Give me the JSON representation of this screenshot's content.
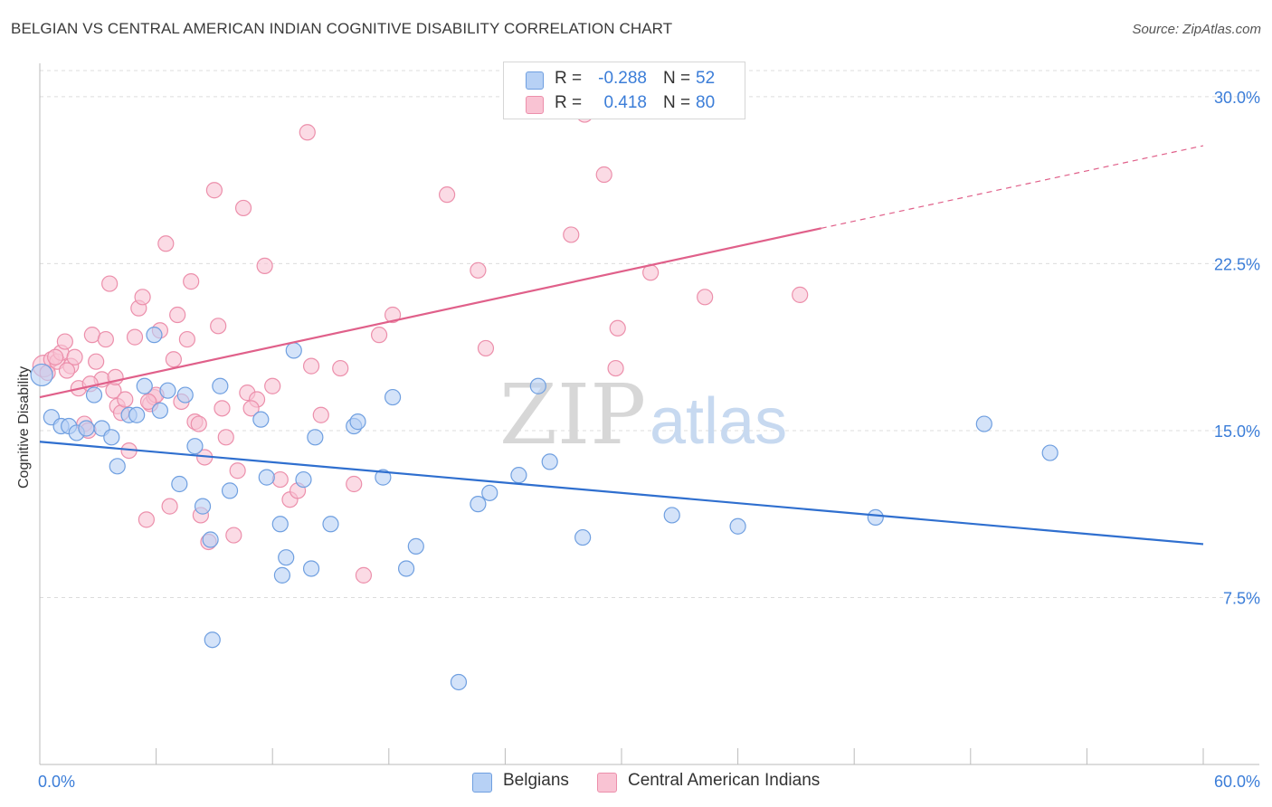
{
  "title": "BELGIAN VS CENTRAL AMERICAN INDIAN COGNITIVE DISABILITY CORRELATION CHART",
  "source": "Source: ZipAtlas.com",
  "watermark": {
    "zip": "ZIP",
    "atlas": "atlas"
  },
  "colors": {
    "belgians_fill": "#b7d1f5",
    "belgians_stroke": "#6f9fe0",
    "belgians_line": "#2f6fcf",
    "cai_fill": "#f9c3d3",
    "cai_stroke": "#ec8fab",
    "cai_line": "#e0608a",
    "value_text": "#3b7dd8",
    "grid": "#dcdcdc"
  },
  "stats": [
    {
      "r_label": "R =",
      "r_value": "-0.288",
      "n_label": "N =",
      "n_value": "52"
    },
    {
      "r_label": "R =",
      "r_value": "0.418",
      "n_label": "N =",
      "n_value": "80"
    }
  ],
  "legend": [
    "Belgians",
    "Central American Indians"
  ],
  "chart_data": {
    "type": "scatter",
    "title": "BELGIAN VS CENTRAL AMERICAN INDIAN COGNITIVE DISABILITY CORRELATION CHART",
    "xlabel": "",
    "ylabel": "Cognitive Disability",
    "xlim": [
      0,
      60
    ],
    "ylim": [
      0,
      31.5
    ],
    "x_tick_labels": [
      "0.0%",
      "60.0%"
    ],
    "y_ticks": [
      7.5,
      15.0,
      22.5,
      30.0
    ],
    "y_tick_labels": [
      "7.5%",
      "15.0%",
      "22.5%",
      "30.0%"
    ],
    "grid": true,
    "legend_position": "bottom",
    "series": [
      {
        "name": "Belgians",
        "r": -0.288,
        "n": 52,
        "trend": {
          "x": [
            0,
            60
          ],
          "y": [
            14.5,
            9.9
          ],
          "dashed_from": null
        },
        "points": [
          [
            0.1,
            17.5
          ],
          [
            0.6,
            15.6
          ],
          [
            1.1,
            15.2
          ],
          [
            1.5,
            15.2
          ],
          [
            1.9,
            14.9
          ],
          [
            2.4,
            15.1
          ],
          [
            2.8,
            16.6
          ],
          [
            3.2,
            15.1
          ],
          [
            3.7,
            14.7
          ],
          [
            4.0,
            13.4
          ],
          [
            4.6,
            15.7
          ],
          [
            5.0,
            15.7
          ],
          [
            5.4,
            17.0
          ],
          [
            5.9,
            19.3
          ],
          [
            6.2,
            15.9
          ],
          [
            6.6,
            16.8
          ],
          [
            7.5,
            16.6
          ],
          [
            7.2,
            12.6
          ],
          [
            8.0,
            14.3
          ],
          [
            8.4,
            11.6
          ],
          [
            8.8,
            10.1
          ],
          [
            9.3,
            17.0
          ],
          [
            9.8,
            12.3
          ],
          [
            11.4,
            15.5
          ],
          [
            11.7,
            12.9
          ],
          [
            12.5,
            8.5
          ],
          [
            12.4,
            10.8
          ],
          [
            12.7,
            9.3
          ],
          [
            13.1,
            18.6
          ],
          [
            13.6,
            12.8
          ],
          [
            14.0,
            8.8
          ],
          [
            14.2,
            14.7
          ],
          [
            15.0,
            10.8
          ],
          [
            16.2,
            15.2
          ],
          [
            16.4,
            15.4
          ],
          [
            17.7,
            12.9
          ],
          [
            18.2,
            16.5
          ],
          [
            18.9,
            8.8
          ],
          [
            19.4,
            9.8
          ],
          [
            21.6,
            3.7
          ],
          [
            22.6,
            11.7
          ],
          [
            23.2,
            12.2
          ],
          [
            24.7,
            13.0
          ],
          [
            25.7,
            17.0
          ],
          [
            26.3,
            13.6
          ],
          [
            28.0,
            10.2
          ],
          [
            32.6,
            11.2
          ],
          [
            36.0,
            10.7
          ],
          [
            43.1,
            11.1
          ],
          [
            48.7,
            15.3
          ],
          [
            52.1,
            14.0
          ],
          [
            8.9,
            5.6
          ]
        ]
      },
      {
        "name": "Central American Indians",
        "r": 0.418,
        "n": 80,
        "trend": {
          "x": [
            0,
            60
          ],
          "y": [
            16.5,
            27.8
          ],
          "dashed_from": 40.3
        },
        "points": [
          [
            0.2,
            17.9
          ],
          [
            0.4,
            17.6
          ],
          [
            0.6,
            18.2
          ],
          [
            0.9,
            18.1
          ],
          [
            1.1,
            18.5
          ],
          [
            1.3,
            19.0
          ],
          [
            1.6,
            17.9
          ],
          [
            1.8,
            18.3
          ],
          [
            2.0,
            16.9
          ],
          [
            2.3,
            15.3
          ],
          [
            2.5,
            15.0
          ],
          [
            2.7,
            19.3
          ],
          [
            2.9,
            18.1
          ],
          [
            3.2,
            17.3
          ],
          [
            3.4,
            19.1
          ],
          [
            3.6,
            21.6
          ],
          [
            3.8,
            16.8
          ],
          [
            4.0,
            16.1
          ],
          [
            4.2,
            15.8
          ],
          [
            4.4,
            16.4
          ],
          [
            4.6,
            14.1
          ],
          [
            4.9,
            19.2
          ],
          [
            5.1,
            20.5
          ],
          [
            5.3,
            21.0
          ],
          [
            5.5,
            11.0
          ],
          [
            5.7,
            16.2
          ],
          [
            5.9,
            16.5
          ],
          [
            6.0,
            16.6
          ],
          [
            6.2,
            19.5
          ],
          [
            6.5,
            23.4
          ],
          [
            6.7,
            11.6
          ],
          [
            6.9,
            18.2
          ],
          [
            7.1,
            20.2
          ],
          [
            7.3,
            16.3
          ],
          [
            7.6,
            19.1
          ],
          [
            7.8,
            21.7
          ],
          [
            8.0,
            15.4
          ],
          [
            8.3,
            11.2
          ],
          [
            8.5,
            13.8
          ],
          [
            8.7,
            10.0
          ],
          [
            9.0,
            25.8
          ],
          [
            9.2,
            19.7
          ],
          [
            9.4,
            16.0
          ],
          [
            9.6,
            14.7
          ],
          [
            10.0,
            10.3
          ],
          [
            10.2,
            13.2
          ],
          [
            10.5,
            25.0
          ],
          [
            10.7,
            16.7
          ],
          [
            11.2,
            16.4
          ],
          [
            11.6,
            22.4
          ],
          [
            12.4,
            12.8
          ],
          [
            12.9,
            11.9
          ],
          [
            13.3,
            12.3
          ],
          [
            13.8,
            28.4
          ],
          [
            14.0,
            17.9
          ],
          [
            14.5,
            15.7
          ],
          [
            15.5,
            17.8
          ],
          [
            16.2,
            12.6
          ],
          [
            16.7,
            8.5
          ],
          [
            17.5,
            19.3
          ],
          [
            18.2,
            20.2
          ],
          [
            21.0,
            25.6
          ],
          [
            22.6,
            22.2
          ],
          [
            23.0,
            18.7
          ],
          [
            27.4,
            23.8
          ],
          [
            28.1,
            29.2
          ],
          [
            29.1,
            26.5
          ],
          [
            29.7,
            17.8
          ],
          [
            29.8,
            19.6
          ],
          [
            31.5,
            22.1
          ],
          [
            34.3,
            21.0
          ],
          [
            39.2,
            21.1
          ],
          [
            3.9,
            17.4
          ],
          [
            2.6,
            17.1
          ],
          [
            0.8,
            18.3
          ],
          [
            1.4,
            17.7
          ],
          [
            5.6,
            16.3
          ],
          [
            8.2,
            15.3
          ],
          [
            10.9,
            16.0
          ],
          [
            12.0,
            17.0
          ]
        ]
      }
    ]
  }
}
